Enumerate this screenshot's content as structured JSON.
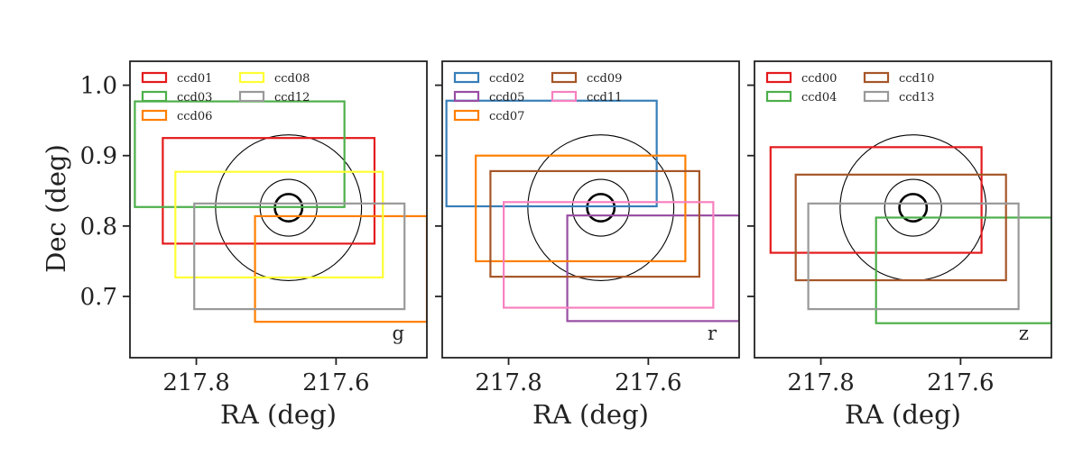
{
  "chart_data": [
    {
      "type": "rectangles",
      "band": "g",
      "xlabel": "RA (deg)",
      "ylabel": "Dec (deg)",
      "xlim": [
        217.895,
        217.47
      ],
      "ylim": [
        0.613,
        1.034
      ],
      "xticks": [
        "217.8",
        "217.6"
      ],
      "xtick_values": [
        217.8,
        217.6
      ],
      "yticks": [
        "1.0",
        "0.9",
        "0.8",
        "0.7"
      ],
      "ytick_values": [
        1.0,
        0.9,
        0.8,
        0.7
      ],
      "legend_position": "top-left",
      "legend_columns": 2,
      "circles": [
        {
          "ra": 217.668,
          "dec": 0.826,
          "radius_deg": 0.1035,
          "emphasis": false
        },
        {
          "ra": 217.668,
          "dec": 0.826,
          "radius_deg": 0.0403,
          "emphasis": false
        },
        {
          "ra": 217.668,
          "dec": 0.826,
          "radius_deg": 0.0194,
          "emphasis": true
        }
      ],
      "series": [
        {
          "name": "ccd01",
          "color": "#e41a1c",
          "ra_min": 217.545,
          "ra_max": 217.848,
          "dec_min": 0.775,
          "dec_max": 0.925
        },
        {
          "name": "ccd03",
          "color": "#4daf4a",
          "ra_min": 217.588,
          "ra_max": 217.888,
          "dec_min": 0.827,
          "dec_max": 0.977
        },
        {
          "name": "ccd06",
          "color": "#ff7f00",
          "ra_min": 217.47,
          "ra_max": 217.716,
          "dec_min": 0.664,
          "dec_max": 0.814
        },
        {
          "name": "ccd08",
          "color": "#ffff33",
          "ra_min": 217.533,
          "ra_max": 217.83,
          "dec_min": 0.727,
          "dec_max": 0.877
        },
        {
          "name": "ccd12",
          "color": "#999999",
          "ra_min": 217.502,
          "ra_max": 217.803,
          "dec_min": 0.682,
          "dec_max": 0.832
        }
      ]
    },
    {
      "type": "rectangles",
      "band": "r",
      "xlabel": "RA (deg)",
      "ylabel": "",
      "xlim": [
        217.895,
        217.47
      ],
      "ylim": [
        0.613,
        1.034
      ],
      "xticks": [
        "217.8",
        "217.6"
      ],
      "xtick_values": [
        217.8,
        217.6
      ],
      "yticks": [],
      "ytick_values": [
        1.0,
        0.9,
        0.8,
        0.7
      ],
      "legend_position": "top-left",
      "legend_columns": 2,
      "circles": [
        {
          "ra": 217.668,
          "dec": 0.826,
          "radius_deg": 0.1035,
          "emphasis": false
        },
        {
          "ra": 217.668,
          "dec": 0.826,
          "radius_deg": 0.0403,
          "emphasis": false
        },
        {
          "ra": 217.668,
          "dec": 0.826,
          "radius_deg": 0.0194,
          "emphasis": true
        }
      ],
      "series": [
        {
          "name": "ccd02",
          "color": "#377eb8",
          "ra_min": 217.588,
          "ra_max": 217.889,
          "dec_min": 0.828,
          "dec_max": 0.978
        },
        {
          "name": "ccd05",
          "color": "#984ea3",
          "ra_min": 217.47,
          "ra_max": 217.716,
          "dec_min": 0.665,
          "dec_max": 0.815
        },
        {
          "name": "ccd07",
          "color": "#ff7f00",
          "ra_min": 217.547,
          "ra_max": 217.847,
          "dec_min": 0.75,
          "dec_max": 0.9
        },
        {
          "name": "ccd09",
          "color": "#a65628",
          "ra_min": 217.527,
          "ra_max": 217.826,
          "dec_min": 0.728,
          "dec_max": 0.878
        },
        {
          "name": "ccd11",
          "color": "#f781bf",
          "ra_min": 217.507,
          "ra_max": 217.807,
          "dec_min": 0.684,
          "dec_max": 0.834
        }
      ]
    },
    {
      "type": "rectangles",
      "band": "z",
      "xlabel": "RA (deg)",
      "ylabel": "",
      "xlim": [
        217.895,
        217.47
      ],
      "ylim": [
        0.613,
        1.034
      ],
      "xticks": [
        "217.8",
        "217.6"
      ],
      "xtick_values": [
        217.8,
        217.6
      ],
      "yticks": [],
      "ytick_values": [
        1.0,
        0.9,
        0.8,
        0.7
      ],
      "legend_position": "top-left",
      "legend_columns": 2,
      "circles": [
        {
          "ra": 217.668,
          "dec": 0.826,
          "radius_deg": 0.1035,
          "emphasis": false
        },
        {
          "ra": 217.668,
          "dec": 0.826,
          "radius_deg": 0.0403,
          "emphasis": false
        },
        {
          "ra": 217.668,
          "dec": 0.826,
          "radius_deg": 0.0194,
          "emphasis": true
        }
      ],
      "series": [
        {
          "name": "ccd00",
          "color": "#e41a1c",
          "ra_min": 217.57,
          "ra_max": 217.872,
          "dec_min": 0.762,
          "dec_max": 0.912
        },
        {
          "name": "ccd04",
          "color": "#4daf4a",
          "ra_min": 217.47,
          "ra_max": 217.721,
          "dec_min": 0.662,
          "dec_max": 0.812
        },
        {
          "name": "ccd10",
          "color": "#a65628",
          "ra_min": 217.535,
          "ra_max": 217.836,
          "dec_min": 0.723,
          "dec_max": 0.873
        },
        {
          "name": "ccd13",
          "color": "#999999",
          "ra_min": 217.517,
          "ra_max": 217.818,
          "dec_min": 0.682,
          "dec_max": 0.832
        }
      ]
    }
  ]
}
